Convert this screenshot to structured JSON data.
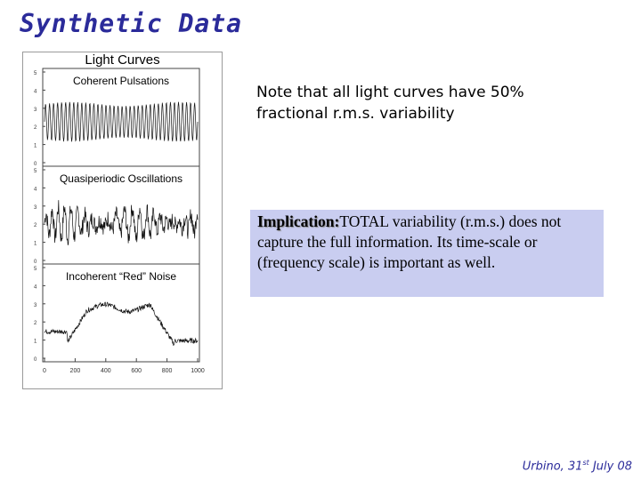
{
  "slide": {
    "title": "Synthetic Data",
    "figure": {
      "label": "Light Curves",
      "panels": [
        {
          "title": "Coherent Pulsations",
          "y_ticks": [
            "5",
            "4",
            "3",
            "2",
            "1",
            "0"
          ]
        },
        {
          "title": "Quasiperiodic Oscillations",
          "y_ticks": [
            "5",
            "4",
            "3",
            "2",
            "1",
            "0"
          ]
        },
        {
          "title": "Incoherent “Red” Noise",
          "y_ticks": [
            "5",
            "4",
            "3",
            "2",
            "1",
            "0"
          ]
        }
      ],
      "x_ticks": [
        "0",
        "200",
        "400",
        "600",
        "800",
        "1000"
      ]
    },
    "note": "Note that all light curves have 50% fractional r.m.s. variability",
    "implication": {
      "head": "Implication:",
      "body": "TOTAL variability (r.m.s.) does not capture the full information. Its time-scale or (frequency scale) is important as well."
    },
    "footer": {
      "place": "Urbino, 31",
      "sup": "st",
      "rest": " July 08"
    }
  },
  "colors": {
    "title": "#2b2b9a",
    "implication_bg": "#c9cdf0",
    "footer": "#2b2b9a"
  }
}
